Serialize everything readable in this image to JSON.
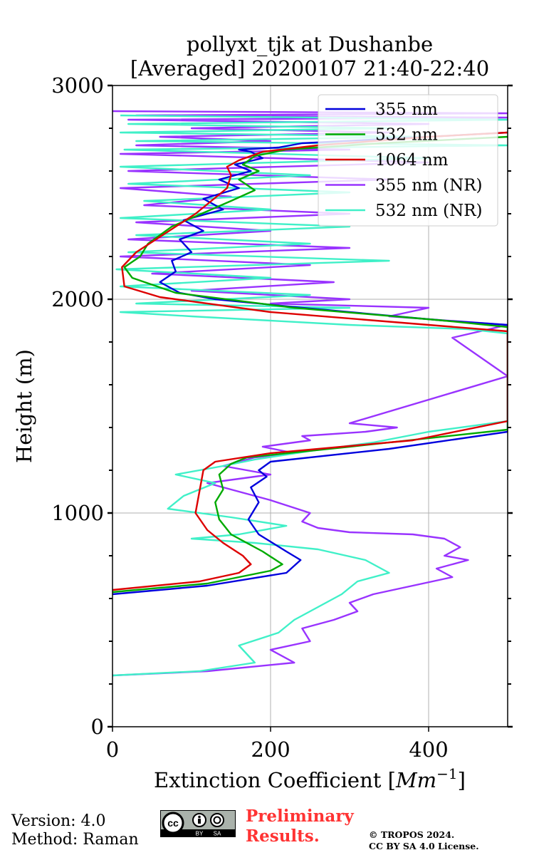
{
  "chart_data": {
    "type": "line",
    "title": [
      "pollyxt_tjk at Dushanbe",
      "[Averaged] 20200107 21:40-22:40"
    ],
    "xlabel": "Extinction Coefficient [Mm⁻¹]",
    "xlabel_base": "Extinction Coefficient [",
    "xlabel_unit": "Mm",
    "xlabel_exp": "−1",
    "xlabel_end": "]",
    "ylabel": "Height (m)",
    "xlim": [
      0,
      500
    ],
    "ylim": [
      0,
      3000
    ],
    "xticks": [
      0,
      200,
      400
    ],
    "xtick_labels": [
      "0",
      "200",
      "400"
    ],
    "yticks": [
      0,
      1000,
      2000,
      3000
    ],
    "ytick_labels": [
      "0",
      "1000",
      "2000",
      "3000"
    ],
    "grid": true,
    "legend_position": "top-right",
    "series": [
      {
        "name": "355 nm",
        "color": "#0000dd",
        "x": [
          0,
          120,
          220,
          238,
          220,
          185,
          172,
          185,
          175,
          195,
          185,
          200,
          350,
          500,
          500,
          420,
          240,
          130,
          85,
          60,
          80,
          75,
          100,
          85,
          115,
          90,
          140,
          115,
          160,
          135,
          175,
          155,
          190,
          175,
          160,
          210,
          240,
          400,
          500
        ],
        "y": [
          620,
          660,
          720,
          780,
          820,
          900,
          970,
          1050,
          1120,
          1170,
          1200,
          1240,
          1300,
          1380,
          1880,
          1900,
          1960,
          2000,
          2030,
          2080,
          2130,
          2180,
          2220,
          2280,
          2320,
          2370,
          2420,
          2470,
          2520,
          2560,
          2600,
          2630,
          2660,
          2690,
          2700,
          2710,
          2730,
          2760,
          2780
        ]
      },
      {
        "name": "532 nm",
        "color": "#00aa00",
        "x": [
          0,
          120,
          200,
          215,
          190,
          150,
          135,
          130,
          140,
          135,
          150,
          170,
          300,
          500,
          500,
          420,
          230,
          80,
          25,
          15,
          35,
          45,
          60,
          75,
          100,
          125,
          150,
          180,
          160,
          185,
          165,
          180,
          220,
          340,
          500
        ],
        "y": [
          630,
          670,
          730,
          760,
          820,
          900,
          970,
          1050,
          1110,
          1180,
          1230,
          1260,
          1310,
          1390,
          1870,
          1900,
          1960,
          2030,
          2100,
          2150,
          2200,
          2260,
          2300,
          2340,
          2380,
          2420,
          2460,
          2510,
          2560,
          2600,
          2630,
          2670,
          2700,
          2730,
          2760
        ]
      },
      {
        "name": "1064 nm",
        "color": "#dd0000",
        "x": [
          0,
          110,
          160,
          175,
          165,
          140,
          120,
          105,
          110,
          115,
          130,
          200,
          380,
          500,
          500,
          400,
          200,
          60,
          15,
          12,
          30,
          55,
          80,
          105,
          125,
          145,
          150,
          145,
          160,
          190,
          260,
          400,
          500
        ],
        "y": [
          640,
          680,
          720,
          760,
          800,
          860,
          920,
          1000,
          1100,
          1200,
          1240,
          1280,
          1340,
          1430,
          1850,
          1880,
          1940,
          2010,
          2060,
          2150,
          2220,
          2280,
          2340,
          2400,
          2460,
          2520,
          2580,
          2620,
          2650,
          2690,
          2720,
          2760,
          2780
        ]
      },
      {
        "name": "355 nm (NR)",
        "color": "#9933ff",
        "x": [
          0,
          120,
          230,
          200,
          250,
          240,
          280,
          310,
          300,
          330,
          380,
          430,
          410,
          450,
          420,
          440,
          420,
          380,
          300,
          260,
          240,
          250,
          200,
          160,
          120,
          200,
          140,
          180,
          230,
          190,
          250,
          240,
          320,
          360,
          300,
          500,
          430,
          500,
          350,
          400,
          200,
          300,
          100,
          280,
          50,
          250,
          10,
          300,
          20,
          200,
          30,
          300,
          40,
          150,
          10,
          350,
          20,
          400,
          10,
          300,
          30,
          200,
          60,
          350,
          100,
          400,
          20,
          500,
          30,
          500,
          0
        ],
        "y": [
          240,
          260,
          300,
          360,
          400,
          460,
          500,
          540,
          580,
          620,
          660,
          700,
          740,
          780,
          800,
          840,
          880,
          900,
          910,
          930,
          960,
          1000,
          1060,
          1100,
          1140,
          1180,
          1220,
          1260,
          1280,
          1310,
          1340,
          1360,
          1380,
          1400,
          1420,
          1640,
          1820,
          1880,
          1920,
          1960,
          1980,
          2000,
          2040,
          2080,
          2120,
          2160,
          2200,
          2240,
          2280,
          2320,
          2360,
          2400,
          2440,
          2480,
          2520,
          2560,
          2600,
          2640,
          2680,
          2700,
          2720,
          2740,
          2760,
          2780,
          2800,
          2820,
          2840,
          2850,
          2860,
          2870,
          2880
        ]
      },
      {
        "name": "532 nm (NR)",
        "color": "#40f0c8",
        "x": [
          0,
          110,
          180,
          160,
          210,
          230,
          260,
          290,
          310,
          350,
          320,
          260,
          180,
          100,
          160,
          220,
          150,
          70,
          90,
          130,
          80,
          140,
          180,
          250,
          330,
          400,
          500,
          500,
          450,
          300,
          200,
          100,
          10,
          300,
          30,
          250,
          10,
          200,
          5,
          350,
          20,
          250,
          30,
          300,
          10,
          200,
          40,
          300,
          20,
          250,
          10,
          400,
          15,
          500,
          30,
          400,
          10,
          350,
          20,
          500,
          10
        ],
        "y": [
          240,
          260,
          300,
          380,
          440,
          500,
          560,
          620,
          680,
          720,
          780,
          830,
          860,
          880,
          900,
          940,
          980,
          1020,
          1080,
          1140,
          1180,
          1220,
          1250,
          1290,
          1330,
          1380,
          1430,
          1840,
          1860,
          1880,
          1900,
          1920,
          1940,
          1960,
          1980,
          2020,
          2060,
          2100,
          2140,
          2180,
          2220,
          2260,
          2300,
          2340,
          2380,
          2420,
          2460,
          2500,
          2540,
          2580,
          2620,
          2660,
          2700,
          2720,
          2740,
          2760,
          2780,
          2800,
          2820,
          2840,
          2860
        ]
      }
    ]
  },
  "footer": {
    "version": "Version: 4.0",
    "method": "Method: Raman",
    "preliminary_line1": "Preliminary",
    "preliminary_line2": "Results.",
    "copyright_line1": "© TROPOS 2024.",
    "copyright_line2": "CC BY SA 4.0 License.",
    "cc_logo": {
      "cc": "cc",
      "by": "BY",
      "sa": "SA"
    }
  }
}
